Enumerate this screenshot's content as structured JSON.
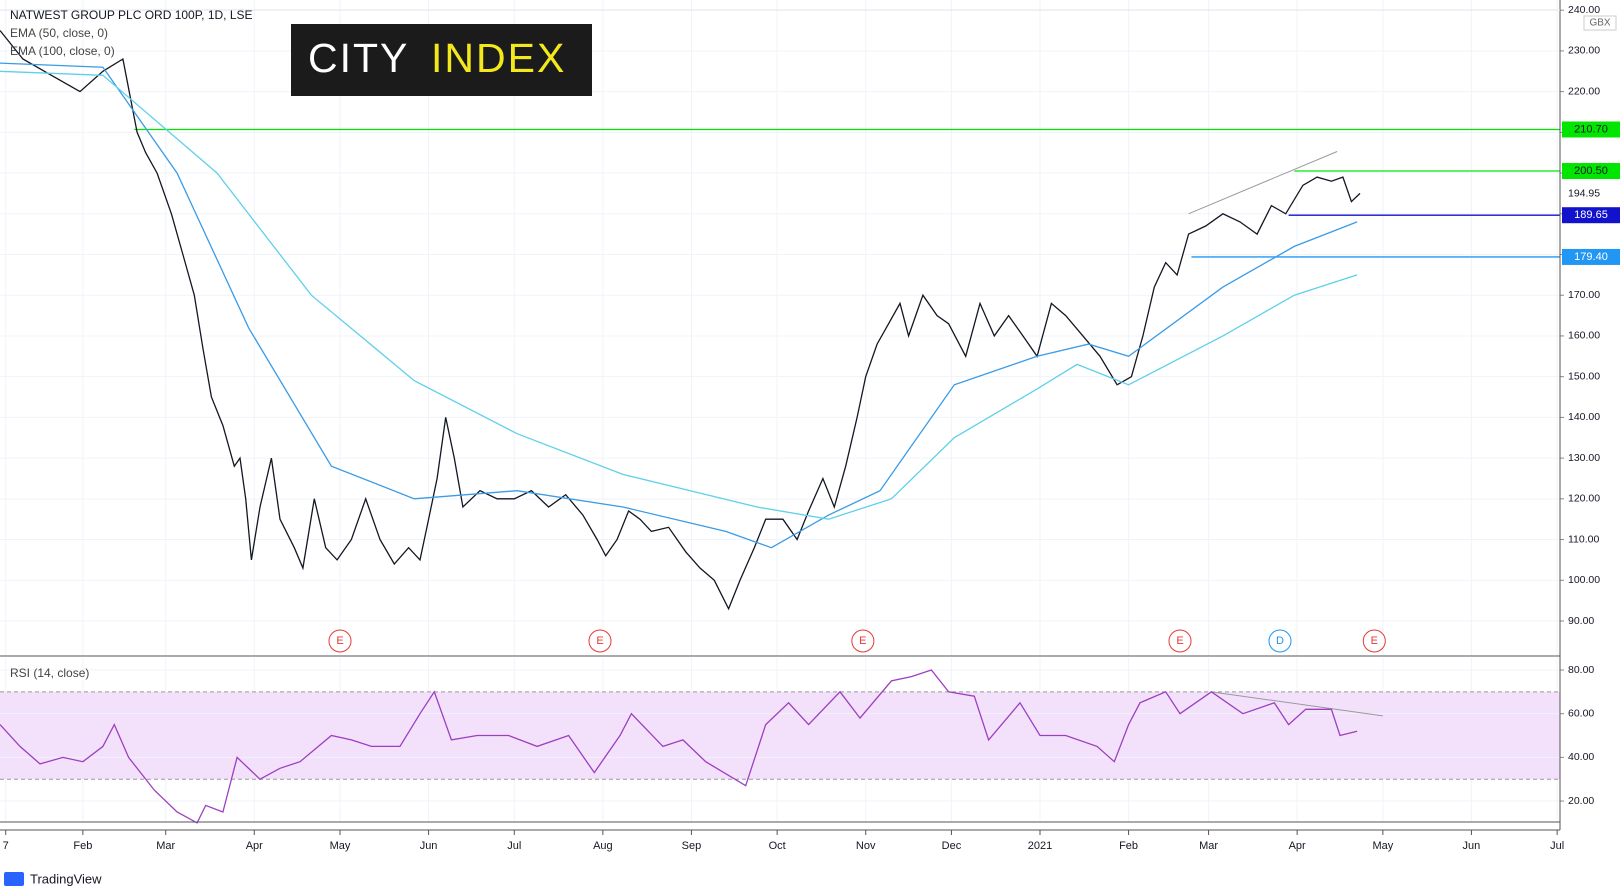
{
  "chart_data": [
    {
      "type": "line",
      "title": "NATWEST GROUP PLC ORD 100P, 1D, LSE",
      "unit": "GBX",
      "xlim": [
        2,
        548
      ],
      "ylim": [
        81.4,
        242.5
      ],
      "grid": true,
      "yticks": [
        {
          "value": 90,
          "label": "90.00"
        },
        {
          "value": 100,
          "label": "100.00"
        },
        {
          "value": 110,
          "label": "110.00"
        },
        {
          "value": 120,
          "label": "120.00"
        },
        {
          "value": 130,
          "label": "130.00"
        },
        {
          "value": 140,
          "label": "140.00"
        },
        {
          "value": 150,
          "label": "150.00"
        },
        {
          "value": 160,
          "label": "160.00"
        },
        {
          "value": 170,
          "label": "170.00"
        },
        {
          "value": 180,
          "label": "180.00"
        },
        {
          "value": 190,
          "label": "190.00"
        },
        {
          "value": 200,
          "label": "200.00"
        },
        {
          "value": 210,
          "label": "210.00"
        },
        {
          "value": 220,
          "label": "220.00"
        },
        {
          "value": 230,
          "label": "230.00"
        },
        {
          "value": 240,
          "label": "240.00"
        }
      ],
      "series": [
        {
          "color": "#131722",
          "x": [
            2,
            10,
            20,
            30,
            38,
            45,
            50,
            53,
            57,
            62,
            66,
            70,
            73,
            76,
            80,
            84,
            86,
            88,
            90,
            93,
            97,
            100,
            105,
            108,
            112,
            116,
            120,
            125,
            130,
            135,
            140,
            145,
            149,
            152,
            155,
            158,
            161,
            164,
            170,
            176,
            182,
            188,
            194,
            200,
            206,
            211,
            214,
            218,
            222,
            226,
            230,
            236,
            242,
            247,
            252,
            257,
            261,
            266,
            270,
            276,
            281,
            285,
            290,
            294,
            298,
            302,
            305,
            309,
            313,
            317,
            320,
            325,
            330,
            334,
            340,
            345,
            350,
            355,
            360,
            365,
            370,
            375,
            381,
            387,
            393,
            398,
            402,
            406,
            410,
            414,
            418,
            424,
            430,
            436,
            442,
            447,
            452,
            458,
            463,
            468,
            472,
            475,
            478
          ],
          "values": [
            235,
            228,
            224,
            220,
            225,
            228,
            210,
            205,
            200,
            190,
            180,
            170,
            157,
            145,
            138,
            128,
            130,
            120,
            105,
            118,
            130,
            115,
            108,
            103,
            120,
            108,
            105,
            110,
            120,
            110,
            104,
            108,
            105,
            115,
            125,
            140,
            130,
            118,
            122,
            120,
            120,
            122,
            118,
            121,
            116,
            110,
            106,
            110,
            117,
            115,
            112,
            113,
            107,
            103,
            100,
            93,
            100,
            108,
            115,
            115,
            110,
            117,
            125,
            118,
            128,
            140,
            150,
            158,
            163,
            168,
            160,
            170,
            165,
            163,
            155,
            168,
            160,
            165,
            160,
            155,
            168,
            165,
            160,
            155,
            148,
            150,
            160,
            172,
            178,
            175,
            185,
            187,
            190,
            188,
            185,
            192,
            190,
            197,
            199,
            198,
            199,
            193,
            195
          ]
        },
        {
          "name": "EMA (50, close, 0)",
          "color": "#3a9be6",
          "x": [
            2,
            38,
            64,
            89,
            118,
            147,
            183,
            220,
            256,
            272,
            292,
            310,
            336,
            365,
            383,
            397,
            430,
            455,
            477
          ],
          "values": [
            227,
            226,
            200,
            162,
            128,
            120,
            122,
            118,
            112,
            108,
            116,
            122,
            148,
            155,
            158,
            155,
            172,
            182,
            188
          ]
        },
        {
          "name": "EMA (100, close, 0)",
          "color": "#5fd0ea",
          "x": [
            2,
            38,
            78,
            111,
            147,
            183,
            220,
            267,
            292,
            314,
            336,
            365,
            379,
            397,
            430,
            455,
            477
          ],
          "values": [
            225,
            224,
            200,
            170,
            149,
            136,
            126,
            118,
            115,
            120,
            135,
            147,
            153,
            148,
            160,
            170,
            175
          ]
        }
      ],
      "levels": [
        {
          "value": 210.7,
          "label": "210.70",
          "color": "#00e600",
          "from": 49
        },
        {
          "value": 200.5,
          "label": "200.50",
          "color": "#00e600",
          "from": 455
        },
        {
          "value": 189.65,
          "label": "189.65",
          "color": "#1212cc",
          "from": 453
        },
        {
          "value": 179.4,
          "label": "179.40",
          "color": "#2196f3",
          "from": 419
        }
      ],
      "last": {
        "value": 194.95,
        "label": "194.95"
      },
      "trendlines": [
        {
          "x": [
            418,
            470
          ],
          "values": [
            190,
            205.3
          ],
          "color": "#9a9a9a"
        }
      ],
      "events": [
        {
          "x": 121,
          "label": "E",
          "color": "#e53935"
        },
        {
          "x": 212,
          "label": "E",
          "color": "#e53935"
        },
        {
          "x": 304,
          "label": "E",
          "color": "#e53935"
        },
        {
          "x": 415,
          "label": "E",
          "color": "#e53935"
        },
        {
          "x": 450,
          "label": "D",
          "color": "#2196f3"
        },
        {
          "x": 483,
          "label": "E",
          "color": "#e53935"
        }
      ]
    },
    {
      "type": "line",
      "xlim": [
        2,
        548
      ],
      "ylim": [
        10.4,
        85.5
      ],
      "grid": true,
      "yticks": [
        {
          "value": 20,
          "label": "20.00"
        },
        {
          "value": 40,
          "label": "40.00"
        },
        {
          "value": 60,
          "label": "60.00"
        },
        {
          "value": 80,
          "label": "80.00"
        }
      ],
      "band": [
        30,
        70
      ],
      "band_color": "#f3e1fb",
      "xticks": [
        {
          "value": 4,
          "label": "7"
        },
        {
          "value": 31,
          "label": "Feb"
        },
        {
          "value": 60,
          "label": "Mar"
        },
        {
          "value": 91,
          "label": "Apr"
        },
        {
          "value": 121,
          "label": "May"
        },
        {
          "value": 152,
          "label": "Jun"
        },
        {
          "value": 182,
          "label": "Jul"
        },
        {
          "value": 213,
          "label": "Aug"
        },
        {
          "value": 244,
          "label": "Sep"
        },
        {
          "value": 274,
          "label": "Oct"
        },
        {
          "value": 305,
          "label": "Nov"
        },
        {
          "value": 335,
          "label": "Dec"
        },
        {
          "value": 366,
          "label": "2021"
        },
        {
          "value": 397,
          "label": "Feb"
        },
        {
          "value": 425,
          "label": "Mar"
        },
        {
          "value": 456,
          "label": "Apr"
        },
        {
          "value": 486,
          "label": "May"
        },
        {
          "value": 517,
          "label": "Jun"
        },
        {
          "value": 547,
          "label": "Jul"
        }
      ],
      "series": [
        {
          "name": "RSI (14, close)",
          "color": "#9c3fbf",
          "x": [
            2,
            9,
            16,
            24,
            31,
            38,
            42,
            47,
            56,
            64,
            71,
            74,
            80,
            85,
            93,
            100,
            107,
            118,
            125,
            132,
            142,
            149,
            154,
            160,
            169,
            180,
            190,
            201,
            210,
            219,
            223,
            234,
            241,
            249,
            263,
            270,
            278,
            285,
            296,
            303,
            314,
            321,
            328,
            334,
            343,
            348,
            359,
            366,
            375,
            386,
            392,
            397,
            401,
            410,
            415,
            426,
            437,
            448,
            453,
            459,
            468,
            471,
            477
          ],
          "values": [
            55,
            45,
            37,
            40,
            38,
            45,
            55,
            40,
            25,
            15,
            10,
            18,
            15,
            40,
            30,
            35,
            38,
            50,
            48,
            45,
            45,
            60,
            70,
            48,
            50,
            50,
            45,
            50,
            33,
            50,
            60,
            45,
            48,
            38,
            27,
            55,
            65,
            55,
            70,
            58,
            75,
            77,
            80,
            70,
            68,
            48,
            65,
            50,
            50,
            45,
            38,
            55,
            65,
            70,
            60,
            70,
            60,
            65,
            55,
            62,
            62,
            50,
            52
          ]
        }
      ],
      "trendlines": [
        {
          "x": [
            426,
            486
          ],
          "values": [
            70,
            59
          ],
          "color": "#9a9a9a"
        }
      ]
    }
  ],
  "branding": {
    "logo_left": "CITY",
    "logo_right": "INDEX",
    "footer": "TradingView"
  }
}
